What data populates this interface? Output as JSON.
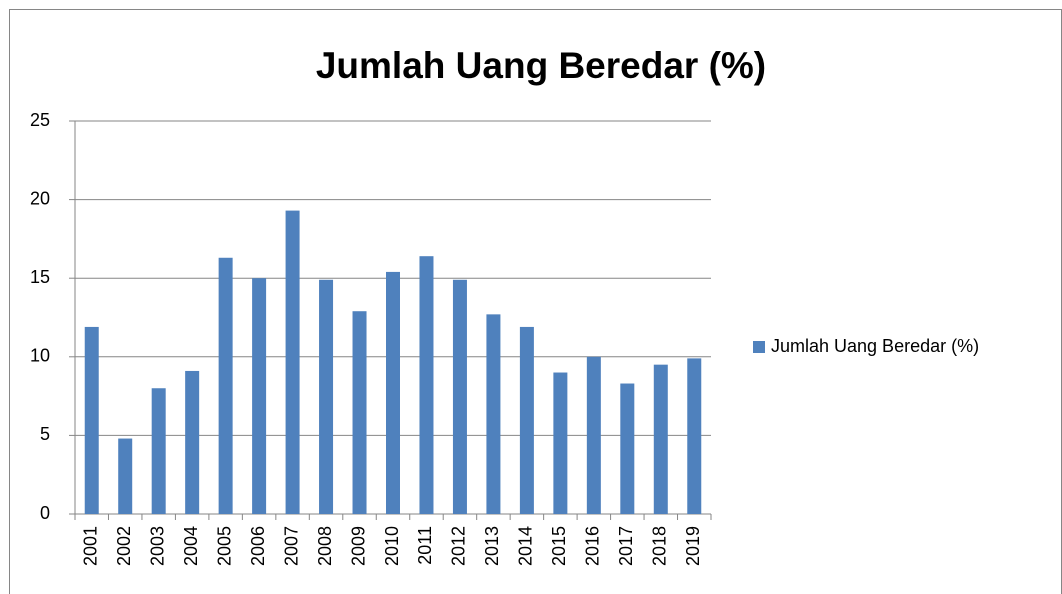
{
  "chart_data": {
    "type": "bar",
    "title": "Jumlah Uang Beredar (%)",
    "categories": [
      "2001",
      "2002",
      "2003",
      "2004",
      "2005",
      "2006",
      "2007",
      "2008",
      "2009",
      "2010",
      "2011",
      "2012",
      "2013",
      "2014",
      "2015",
      "2016",
      "2017",
      "2018",
      "2019"
    ],
    "series": [
      {
        "name": "Jumlah Uang Beredar (%)",
        "color": "#4f81bd",
        "values": [
          11.9,
          4.8,
          8.0,
          9.1,
          16.3,
          15.0,
          19.3,
          14.9,
          12.9,
          15.4,
          16.4,
          14.9,
          12.7,
          11.9,
          9.0,
          10.0,
          8.3,
          9.5,
          9.9
        ]
      }
    ],
    "ylim": [
      0,
      25
    ],
    "yticks": [
      0,
      5,
      10,
      15,
      20,
      25
    ],
    "grid": true,
    "legend": "right"
  }
}
